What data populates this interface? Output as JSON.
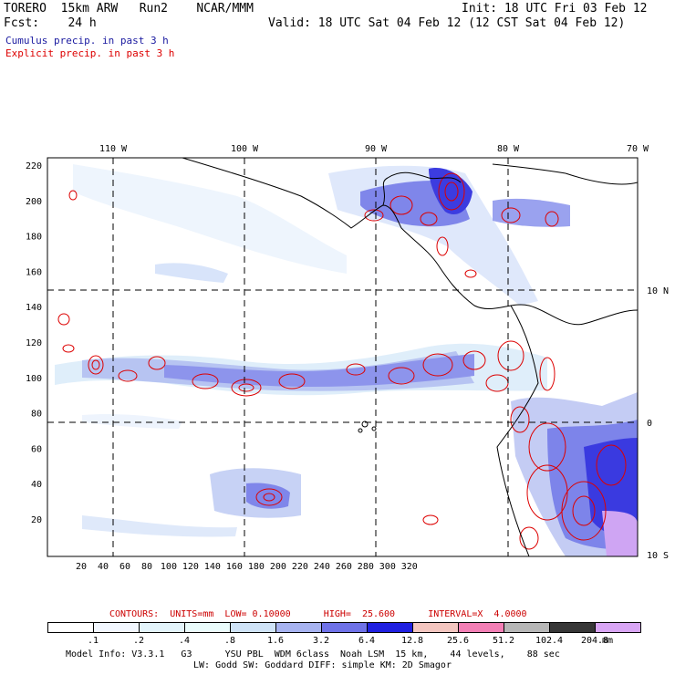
{
  "header": {
    "model": "TORERO  15km ARW   Run2    NCAR/MMM",
    "init": "Init: 18 UTC Fri 03 Feb 12",
    "fcst": "Fcst:    24 h",
    "valid": "Valid: 18 UTC Sat 04 Feb 12 (12 CST Sat 04 Feb 12)",
    "cumulus": "Cumulus precip. in past 3 h",
    "explicit": "Explicit precip. in past 3 h"
  },
  "map": {
    "lon_labels": [
      "110 W",
      "100 W",
      "90 W",
      "80 W",
      "70 W"
    ],
    "lat_labels": [
      "10 N",
      "0",
      "10 S"
    ],
    "x_ticks": [
      "20",
      "40",
      "60",
      "80",
      "100",
      "120",
      "140",
      "160",
      "180",
      "200",
      "220",
      "240",
      "260",
      "280",
      "300",
      "320"
    ],
    "y_ticks": [
      "220",
      "200",
      "180",
      "160",
      "140",
      "120",
      "100",
      "80",
      "60",
      "40",
      "20"
    ],
    "colors": {
      "cumulus": "#3333cc",
      "explicit": "#dd0000",
      "grid": "#000000"
    }
  },
  "contours": {
    "text": "CONTOURS:  UNITS=mm  LOW= 0.10000      HIGH=  25.600      INTERVAL=X  4.0000"
  },
  "legend": {
    "labels": [
      ".1",
      ".2",
      ".4",
      ".8",
      "1.6",
      "3.2",
      "6.4",
      "12.8",
      "25.6",
      "51.2",
      "102.4",
      "204.8"
    ],
    "unit": "mm",
    "colors": [
      "#ffffff",
      "#f2f7ff",
      "#e3f4fb",
      "#eafcfc",
      "#cfe3f7",
      "#a7b3f0",
      "#6f72e8",
      "#2020e0",
      "#f4c6c0",
      "#f37fb5",
      "#b7b7b7",
      "#373737",
      "#d9a6f5"
    ]
  },
  "footer": {
    "line1": "Model Info: V3.3.1   G3      YSU PBL  WDM 6class  Noah LSM  15 km,    44 levels,    88 sec",
    "line2": "LW: Godd SW: Goddard DIFF: simple KM: 2D Smagor"
  }
}
